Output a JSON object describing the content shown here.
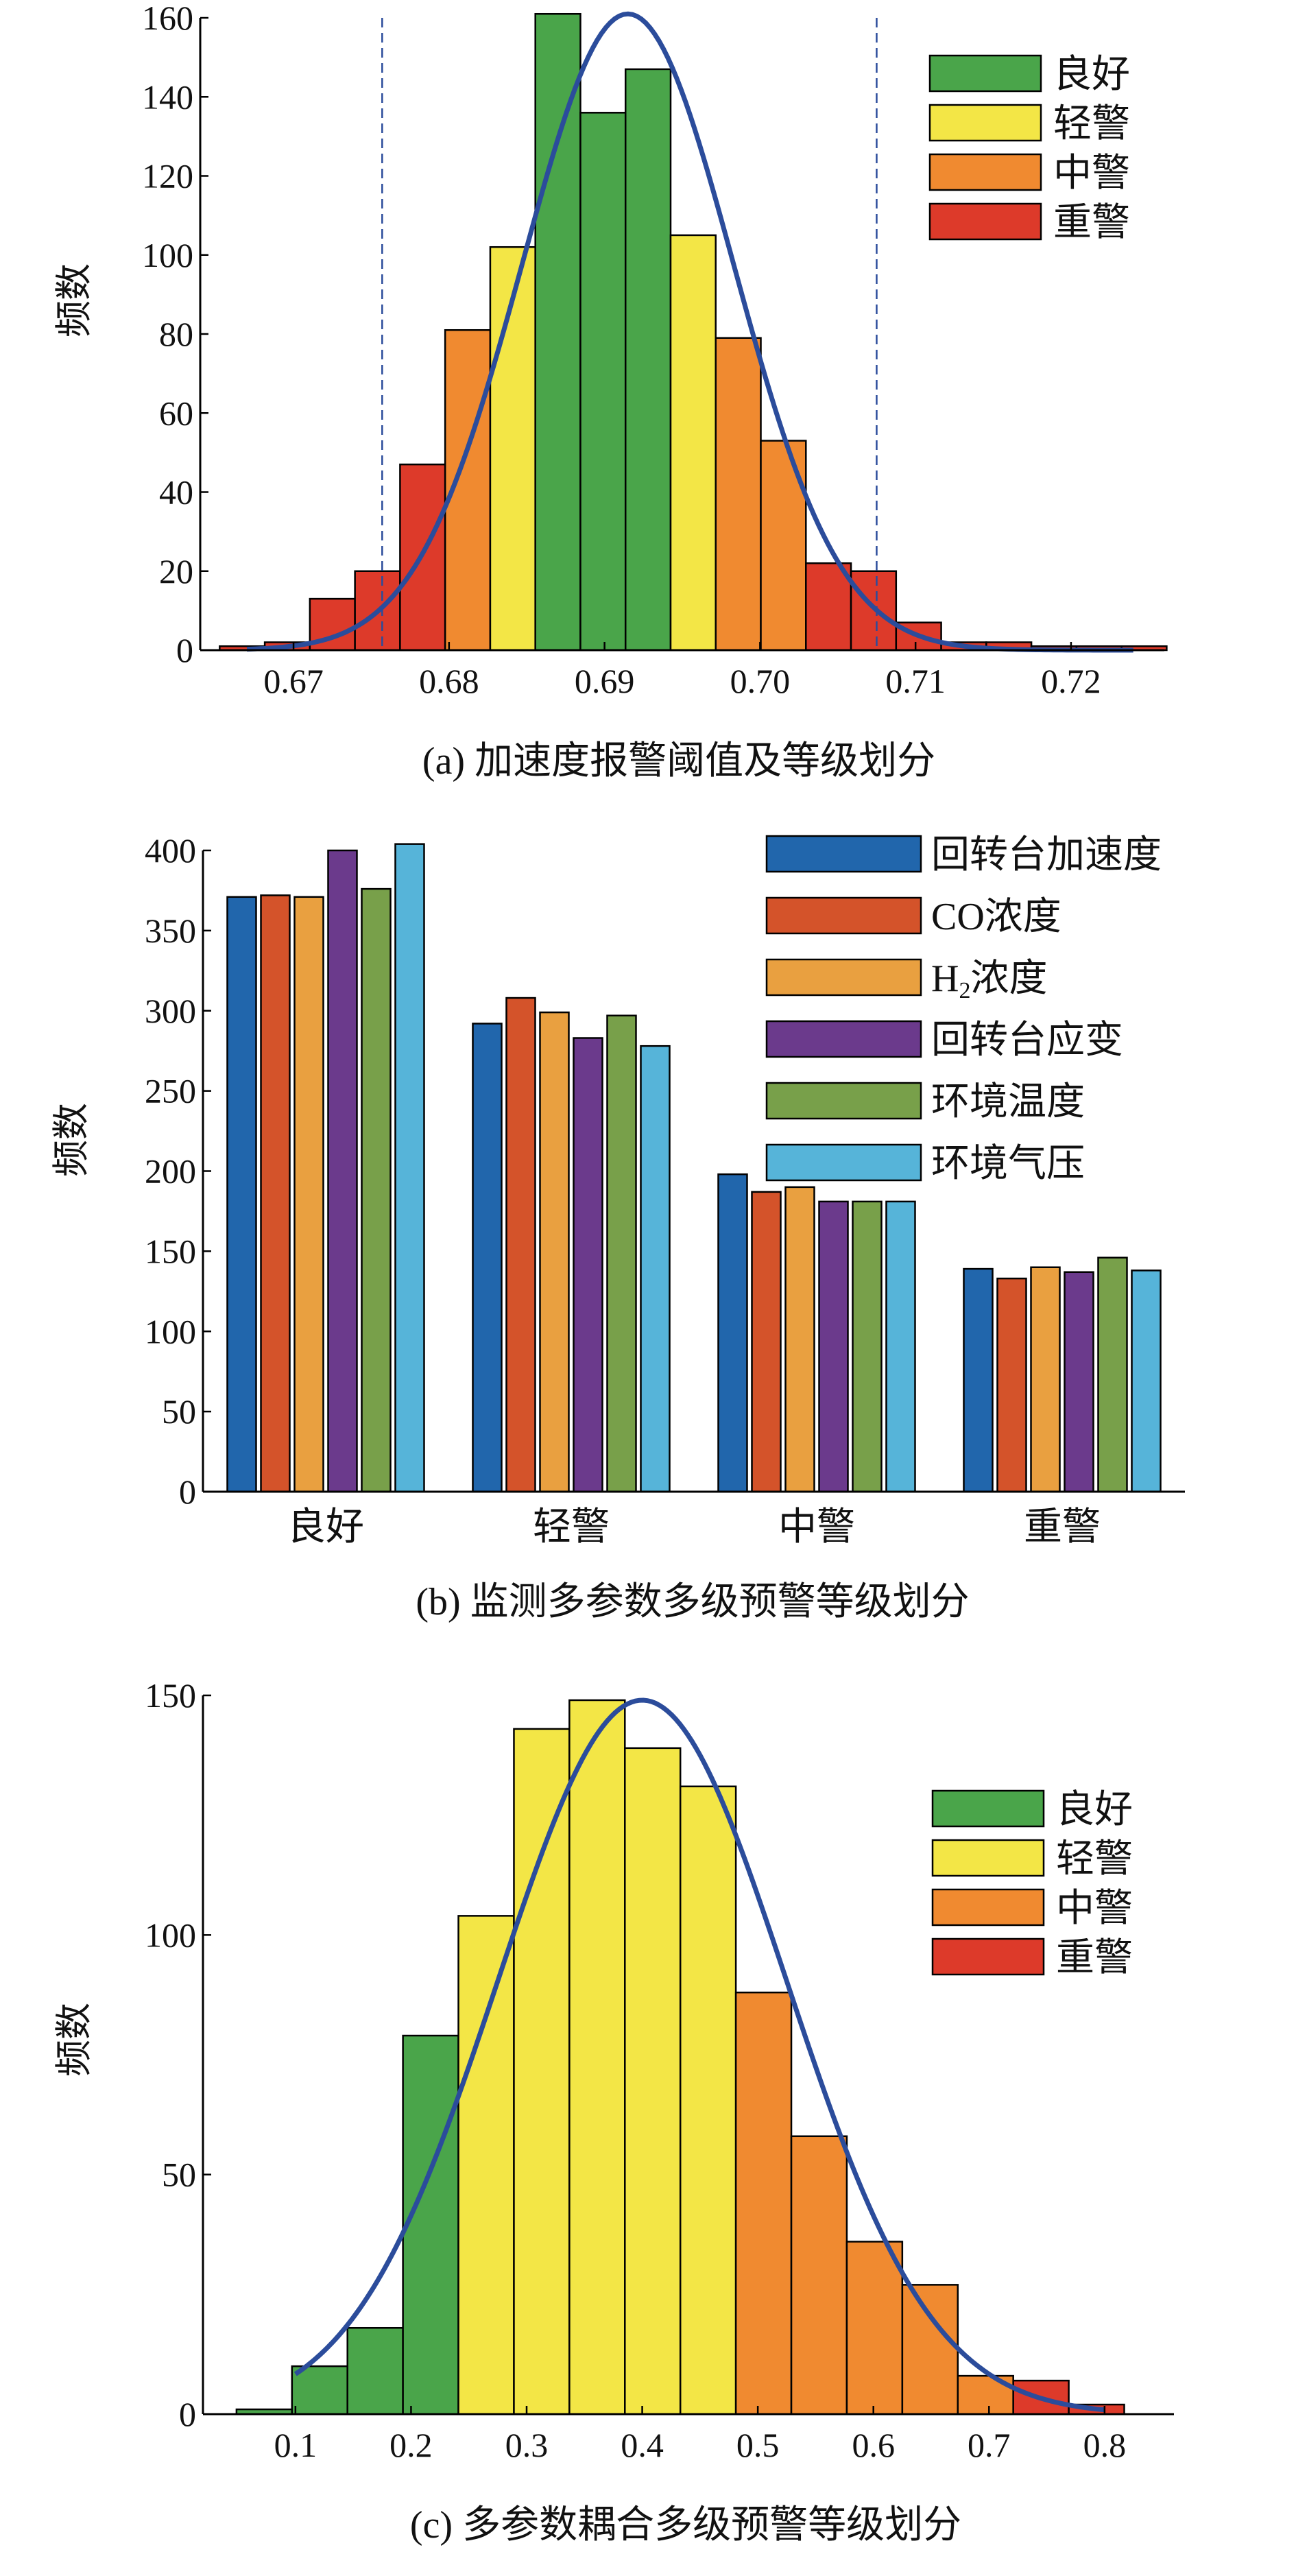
{
  "chart_data": [
    {
      "type": "bar",
      "panel": "a",
      "caption": "(a)  加速度报警阈值及等级划分",
      "ylabel": "频数",
      "xlabel": "",
      "xlim": [
        0.664,
        0.726
      ],
      "ylim": [
        0,
        160
      ],
      "xticks": [
        "0.67",
        "0.68",
        "0.69",
        "0.70",
        "0.71",
        "0.72"
      ],
      "yticks": [
        "0",
        "20",
        "40",
        "60",
        "80",
        "100",
        "120",
        "140",
        "160"
      ],
      "bin_width": 0.0029,
      "bins": [
        {
          "x": 0.6667,
          "count": 1,
          "level": "重警"
        },
        {
          "x": 0.6696,
          "count": 2,
          "level": "重警"
        },
        {
          "x": 0.6725,
          "count": 13,
          "level": "重警"
        },
        {
          "x": 0.6754,
          "count": 20,
          "level": "重警"
        },
        {
          "x": 0.6783,
          "count": 47,
          "level": "重警"
        },
        {
          "x": 0.6812,
          "count": 81,
          "level": "中警"
        },
        {
          "x": 0.6841,
          "count": 102,
          "level": "轻警"
        },
        {
          "x": 0.687,
          "count": 161,
          "level": "良好"
        },
        {
          "x": 0.6899,
          "count": 136,
          "level": "良好"
        },
        {
          "x": 0.6928,
          "count": 147,
          "level": "良好"
        },
        {
          "x": 0.6957,
          "count": 105,
          "level": "轻警"
        },
        {
          "x": 0.6986,
          "count": 79,
          "level": "中警"
        },
        {
          "x": 0.7015,
          "count": 53,
          "level": "中警"
        },
        {
          "x": 0.7044,
          "count": 22,
          "level": "重警"
        },
        {
          "x": 0.7073,
          "count": 20,
          "level": "重警"
        },
        {
          "x": 0.7102,
          "count": 7,
          "level": "重警"
        },
        {
          "x": 0.7131,
          "count": 2,
          "level": "重警"
        },
        {
          "x": 0.716,
          "count": 2,
          "level": "重警"
        },
        {
          "x": 0.7189,
          "count": 1,
          "level": "重警"
        },
        {
          "x": 0.7218,
          "count": 1,
          "level": "重警"
        },
        {
          "x": 0.7247,
          "count": 1,
          "level": "重警"
        }
      ],
      "fit_curve": {
        "type": "normal",
        "mean": 0.6915,
        "sd": 0.0068,
        "peak": 161,
        "x_range": [
          0.667,
          0.724
        ]
      },
      "threshold_lines": [
        0.6757,
        0.7075
      ],
      "legend": {
        "position": "top-right",
        "items": [
          "良好",
          "轻警",
          "中警",
          "重警"
        ]
      }
    },
    {
      "type": "bar",
      "panel": "b",
      "caption": "(b) 监测多参数多级预警等级划分",
      "ylabel": "频数",
      "xlabel": "",
      "ylim": [
        0,
        400
      ],
      "yticks": [
        "0",
        "50",
        "100",
        "150",
        "200",
        "250",
        "300",
        "350",
        "400"
      ],
      "categories": [
        "良好",
        "轻警",
        "中警",
        "重警"
      ],
      "series": [
        {
          "name": "回转台加速度",
          "values": [
            371,
            292,
            198,
            139
          ]
        },
        {
          "name": "CO浓度",
          "values": [
            372,
            308,
            187,
            133
          ]
        },
        {
          "name": "H2浓度",
          "values": [
            371,
            299,
            190,
            140
          ]
        },
        {
          "name": "回转台应变",
          "values": [
            400,
            283,
            181,
            137
          ]
        },
        {
          "name": "环境温度",
          "values": [
            376,
            297,
            181,
            146
          ]
        },
        {
          "name": "环境气压",
          "values": [
            404,
            278,
            181,
            138
          ]
        }
      ],
      "legend": {
        "position": "top-right"
      }
    },
    {
      "type": "bar",
      "panel": "c",
      "caption": "(c) 多参数耦合多级预警等级划分",
      "ylabel": "频数",
      "xlabel": "",
      "xlim": [
        0.02,
        0.86
      ],
      "ylim": [
        0,
        150
      ],
      "xticks": [
        "0.1",
        "0.2",
        "0.3",
        "0.4",
        "0.5",
        "0.6",
        "0.7",
        "0.8"
      ],
      "yticks": [
        "0",
        "50",
        "100",
        "150"
      ],
      "bin_width": 0.048,
      "bins": [
        {
          "x": 0.073,
          "count": 1,
          "level": "良好"
        },
        {
          "x": 0.121,
          "count": 10,
          "level": "良好"
        },
        {
          "x": 0.169,
          "count": 18,
          "level": "良好"
        },
        {
          "x": 0.217,
          "count": 79,
          "level": "良好"
        },
        {
          "x": 0.265,
          "count": 104,
          "level": "轻警"
        },
        {
          "x": 0.313,
          "count": 143,
          "level": "轻警"
        },
        {
          "x": 0.361,
          "count": 149,
          "level": "轻警"
        },
        {
          "x": 0.409,
          "count": 139,
          "level": "轻警"
        },
        {
          "x": 0.457,
          "count": 131,
          "level": "轻警"
        },
        {
          "x": 0.505,
          "count": 88,
          "level": "中警"
        },
        {
          "x": 0.553,
          "count": 58,
          "level": "中警"
        },
        {
          "x": 0.601,
          "count": 36,
          "level": "中警"
        },
        {
          "x": 0.649,
          "count": 27,
          "level": "中警"
        },
        {
          "x": 0.697,
          "count": 8,
          "level": "中警"
        },
        {
          "x": 0.745,
          "count": 7,
          "level": "重警"
        },
        {
          "x": 0.793,
          "count": 2,
          "level": "重警"
        }
      ],
      "fit_curve": {
        "type": "normal",
        "mean": 0.4,
        "sd": 0.125,
        "peak": 149,
        "x_range": [
          0.1,
          0.8
        ]
      },
      "legend": {
        "position": "top-right",
        "items": [
          "良好",
          "轻警",
          "中警",
          "重警"
        ]
      }
    }
  ],
  "level_colors": {
    "良好": "#4aa54a",
    "轻警": "#f3e646",
    "中警": "#f08a30",
    "重警": "#dd3a2a"
  },
  "series_colors": [
    "#2166ac",
    "#d4532a",
    "#e9a040",
    "#6b3a8c",
    "#78a04a",
    "#56b4d9"
  ],
  "curve_color": "#2b4c9b"
}
